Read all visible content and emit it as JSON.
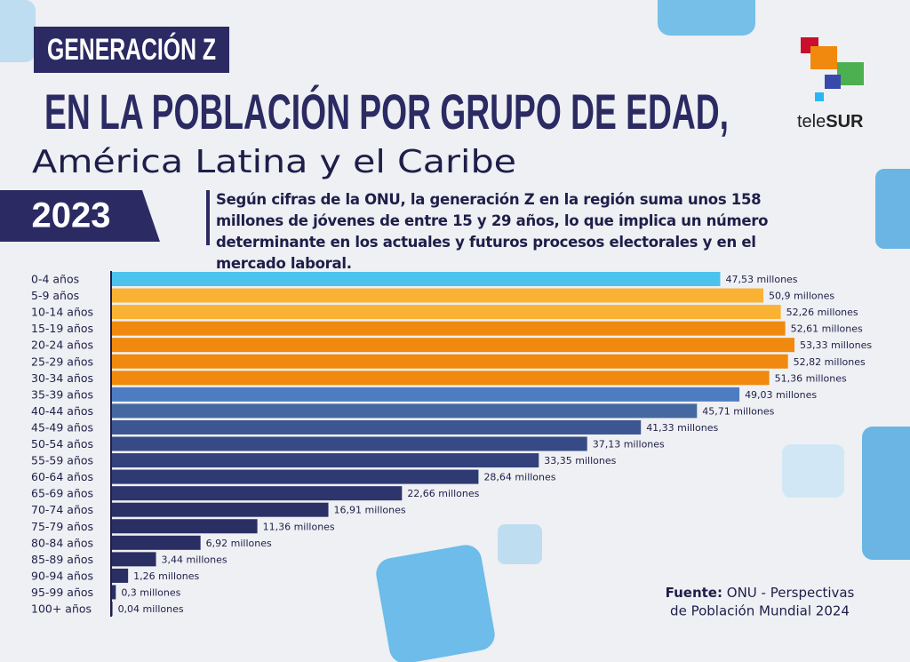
{
  "header": {
    "tag": "GENERACIÓN Z",
    "title": "EN LA POBLACIÓN POR GRUPO DE EDAD,",
    "subtitle": "América Latina y el Caribe",
    "year": "2023",
    "description": "Según cifras de la ONU, la generación Z en la región suma unos 158 millones de jóvenes de entre 15 y 29 años, lo que implica un número determinante en los actuales y futuros procesos electorales y en el mercado laboral.",
    "logo": [
      "tele",
      "SUR"
    ]
  },
  "chart_data": {
    "type": "bar",
    "orientation": "horizontal",
    "categories": [
      "0-4 años",
      "5-9 años",
      "10-14 años",
      "15-19 años",
      "20-24 años",
      "25-29 años",
      "30-34 años",
      "35-39 años",
      "40-44 años",
      "45-49 años",
      "50-54 años",
      "55-59 años",
      "60-64 años",
      "65-69 años",
      "70-74 años",
      "75-79 años",
      "80-84 años",
      "85-89 años",
      "90-94 años",
      "95-99 años",
      "100+ años"
    ],
    "values": [
      47.53,
      50.9,
      52.26,
      52.61,
      53.33,
      52.82,
      51.36,
      49.03,
      45.71,
      41.33,
      37.13,
      33.35,
      28.64,
      22.66,
      16.91,
      11.36,
      6.92,
      3.44,
      1.26,
      0.3,
      0.04
    ],
    "value_labels": [
      "47,53 millones",
      "50,9 millones",
      "52,26 millones",
      "52,61 millones",
      "53,33 millones",
      "52,82 millones",
      "51,36 millones",
      "49,03 millones",
      "45,71 millones",
      "41,33 millones",
      "37,13 millones",
      "33,35 millones",
      "28,64 millones",
      "22,66 millones",
      "16,91 millones",
      "11,36 millones",
      "6,92 millones",
      "3,44 millones",
      "1,26 millones",
      "0,3 millones",
      "0,04 millones"
    ],
    "colors": [
      "#4cc3ec",
      "#f9b234",
      "#f9b234",
      "#f0890d",
      "#f0890d",
      "#f0890d",
      "#f0890d",
      "#4d7cc2",
      "#44689f",
      "#3d5590",
      "#364a85",
      "#33427c",
      "#2f3a73",
      "#2d356c",
      "#2b3167",
      "#2a2f63",
      "#2a2e62",
      "#2a2e62",
      "#2a2e62",
      "#2a2e62",
      "#2a2e62"
    ]
  },
  "source": {
    "label": "Fuente:",
    "lines": [
      "ONU - Perspectivas",
      "de Población Mundial 2024"
    ]
  }
}
